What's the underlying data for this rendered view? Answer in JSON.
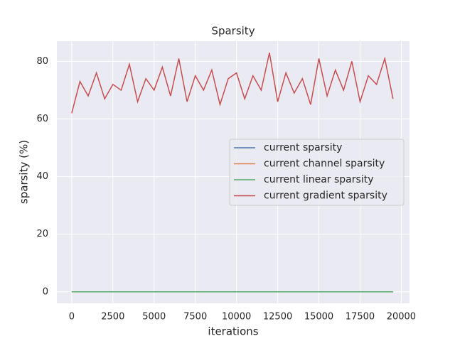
{
  "chart_data": {
    "type": "line",
    "title": "Sparsity",
    "x_label": "iterations",
    "y_label": "sparsity (%)",
    "x": [
      0,
      500,
      1000,
      1500,
      2000,
      2500,
      3000,
      3500,
      4000,
      4500,
      5000,
      5500,
      6000,
      6500,
      7000,
      7500,
      8000,
      8500,
      9000,
      9500,
      10000,
      10500,
      11000,
      11500,
      12000,
      12500,
      13000,
      13500,
      14000,
      14500,
      15000,
      15500,
      16000,
      16500,
      17000,
      17500,
      18000,
      18500,
      19000,
      19500
    ],
    "series": [
      {
        "name": "current sparsity",
        "color": "#4c72b0",
        "values": [
          0,
          0,
          0,
          0,
          0,
          0,
          0,
          0,
          0,
          0,
          0,
          0,
          0,
          0,
          0,
          0,
          0,
          0,
          0,
          0,
          0,
          0,
          0,
          0,
          0,
          0,
          0,
          0,
          0,
          0,
          0,
          0,
          0,
          0,
          0,
          0,
          0,
          0,
          0,
          0
        ]
      },
      {
        "name": "current channel sparsity",
        "color": "#dd8452",
        "values": [
          0,
          0,
          0,
          0,
          0,
          0,
          0,
          0,
          0,
          0,
          0,
          0,
          0,
          0,
          0,
          0,
          0,
          0,
          0,
          0,
          0,
          0,
          0,
          0,
          0,
          0,
          0,
          0,
          0,
          0,
          0,
          0,
          0,
          0,
          0,
          0,
          0,
          0,
          0,
          0
        ]
      },
      {
        "name": "current linear sparsity",
        "color": "#55a868",
        "values": [
          0,
          0,
          0,
          0,
          0,
          0,
          0,
          0,
          0,
          0,
          0,
          0,
          0,
          0,
          0,
          0,
          0,
          0,
          0,
          0,
          0,
          0,
          0,
          0,
          0,
          0,
          0,
          0,
          0,
          0,
          0,
          0,
          0,
          0,
          0,
          0,
          0,
          0,
          0,
          0
        ]
      },
      {
        "name": "current gradient sparsity",
        "color": "#c44e52",
        "values": [
          62,
          73,
          68,
          76,
          67,
          72,
          70,
          79,
          66,
          74,
          70,
          78,
          68,
          81,
          66,
          75,
          70,
          77,
          65,
          74,
          76,
          67,
          75,
          70,
          83,
          66,
          76,
          69,
          74,
          65,
          81,
          68,
          77,
          70,
          80,
          66,
          75,
          72,
          81,
          67
        ]
      }
    ],
    "xlim": [
      -900,
      20500
    ],
    "ylim": [
      -4,
      87
    ],
    "xticks": [
      0,
      2500,
      5000,
      7500,
      10000,
      12500,
      15000,
      17500,
      20000
    ],
    "yticks": [
      0,
      20,
      40,
      60,
      80
    ],
    "grid": true,
    "legend": "center right"
  }
}
